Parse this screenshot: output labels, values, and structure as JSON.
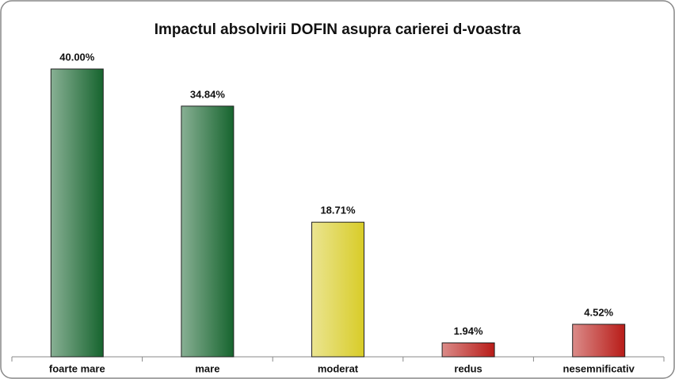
{
  "chart_data": {
    "type": "bar",
    "title": "Impactul absolvirii DOFIN asupra carierei d-voastra",
    "categories": [
      "foarte mare",
      "mare",
      "moderat",
      "redus",
      "nesemnificativ"
    ],
    "values": [
      40.0,
      34.84,
      18.71,
      1.94,
      4.52
    ],
    "value_labels": [
      "40.00%",
      "34.84%",
      "18.71%",
      "1.94%",
      "4.52%"
    ],
    "colors": [
      "#16642e",
      "#16642e",
      "#d8cc28",
      "#b81c18",
      "#b81c18"
    ]
  }
}
